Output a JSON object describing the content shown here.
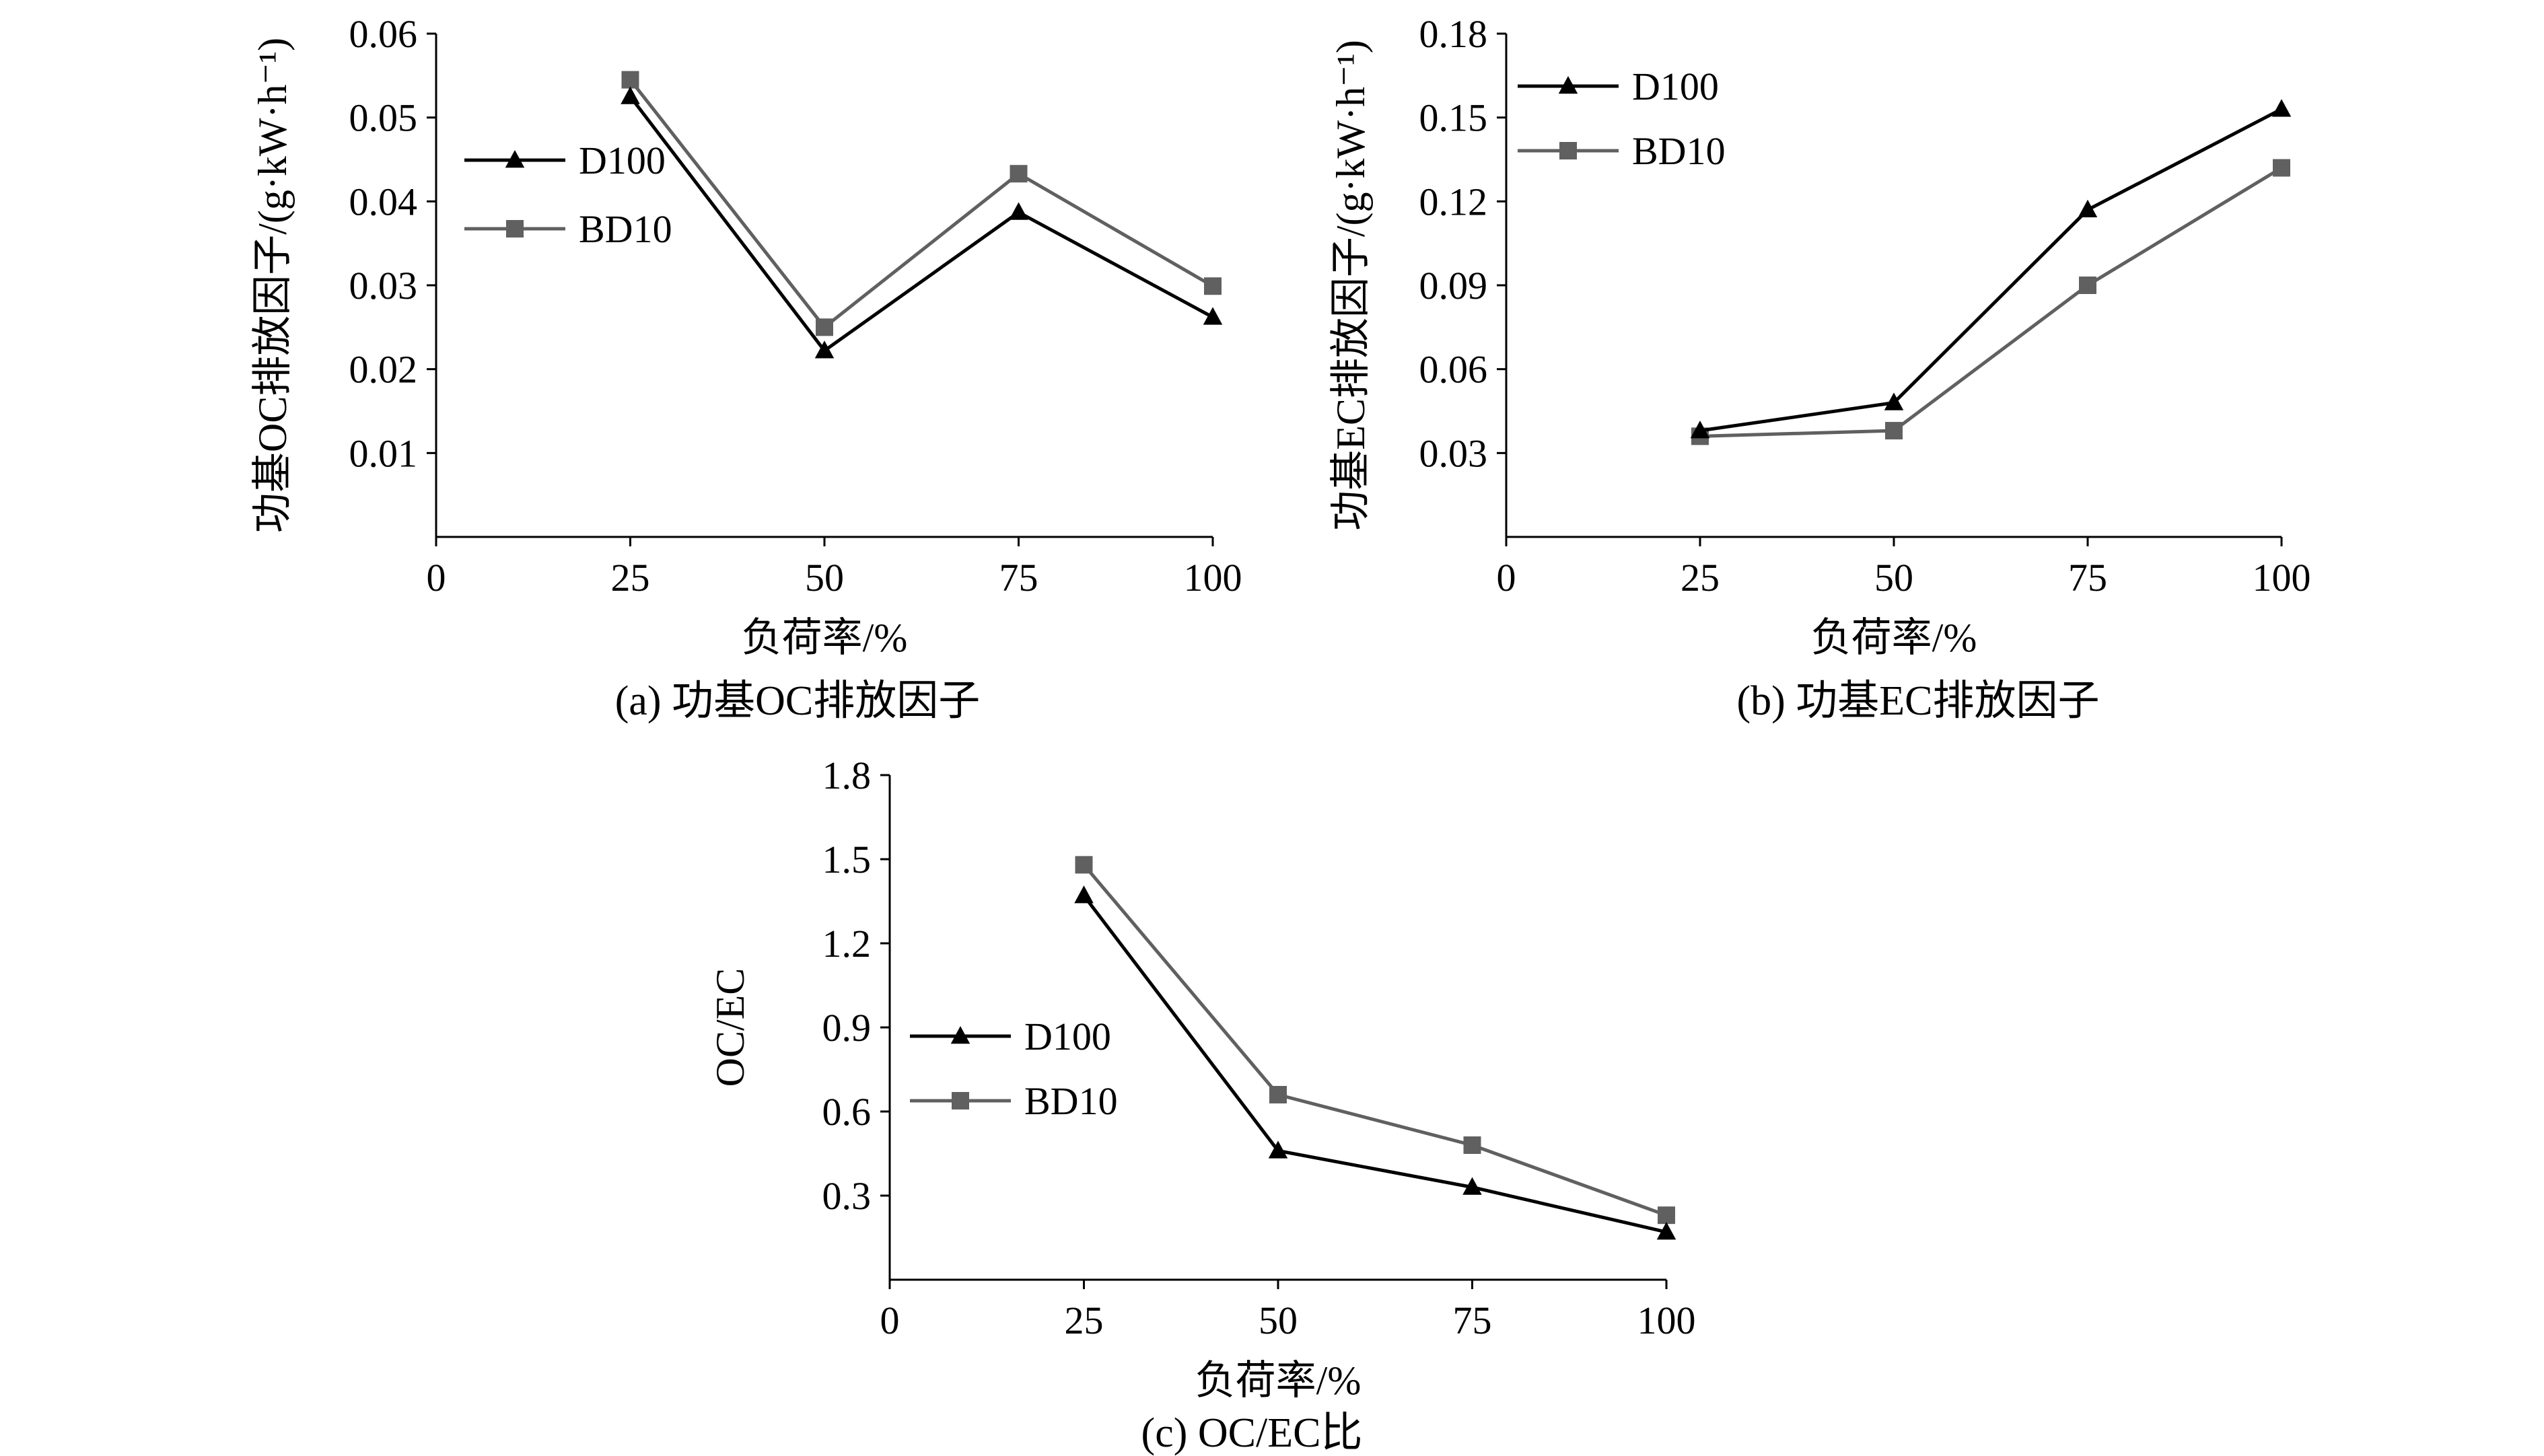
{
  "colors": {
    "d100": "#000000",
    "bd10": "#606060"
  },
  "chart_data": [
    {
      "id": "a",
      "type": "line",
      "caption": "(a) 功基OC排放因子",
      "xlabel": "负荷率/%",
      "ylabel": "功基OC排放因子/(g·kW·h⁻¹)",
      "xlim": [
        0,
        100
      ],
      "ylim": [
        0,
        0.06
      ],
      "x_ticks": [
        "0",
        "25",
        "50",
        "75",
        "100"
      ],
      "y_ticks": [
        "0.01",
        "0.02",
        "0.03",
        "0.04",
        "0.05",
        "0.06"
      ],
      "x": [
        25,
        50,
        75,
        100
      ],
      "legend_position": "left",
      "series": [
        {
          "name": "D100",
          "marker": "triangle",
          "values": [
            0.0525,
            0.0222,
            0.0387,
            0.0262
          ]
        },
        {
          "name": "BD10",
          "marker": "square",
          "values": [
            0.0545,
            0.025,
            0.0433,
            0.0299
          ]
        }
      ]
    },
    {
      "id": "b",
      "type": "line",
      "caption": "(b) 功基EC排放因子",
      "xlabel": "负荷率/%",
      "ylabel": "功基EC排放因子/(g·kW·h⁻¹)",
      "xlim": [
        0,
        100
      ],
      "ylim": [
        0,
        0.18
      ],
      "x_ticks": [
        "0",
        "25",
        "50",
        "75",
        "100"
      ],
      "y_ticks": [
        "0.03",
        "0.06",
        "0.09",
        "0.12",
        "0.15",
        "0.18"
      ],
      "x": [
        25,
        50,
        75,
        100
      ],
      "legend_position": "top-left",
      "series": [
        {
          "name": "D100",
          "marker": "triangle",
          "values": [
            0.038,
            0.048,
            0.117,
            0.153
          ]
        },
        {
          "name": "BD10",
          "marker": "square",
          "values": [
            0.036,
            0.038,
            0.09,
            0.132
          ]
        }
      ]
    },
    {
      "id": "c",
      "type": "line",
      "caption": "(c) OC/EC比",
      "xlabel": "负荷率/%",
      "ylabel": "OC/EC",
      "xlim": [
        0,
        100
      ],
      "ylim": [
        0,
        1.8
      ],
      "x_ticks": [
        "0",
        "25",
        "50",
        "75",
        "100"
      ],
      "y_ticks": [
        "0.3",
        "0.6",
        "0.9",
        "1.2",
        "1.5",
        "1.8"
      ],
      "x": [
        25,
        50,
        75,
        100
      ],
      "legend_position": "left",
      "series": [
        {
          "name": "D100",
          "marker": "triangle",
          "values": [
            1.37,
            0.46,
            0.33,
            0.17
          ]
        },
        {
          "name": "BD10",
          "marker": "square",
          "values": [
            1.48,
            0.66,
            0.48,
            0.23
          ]
        }
      ]
    }
  ]
}
